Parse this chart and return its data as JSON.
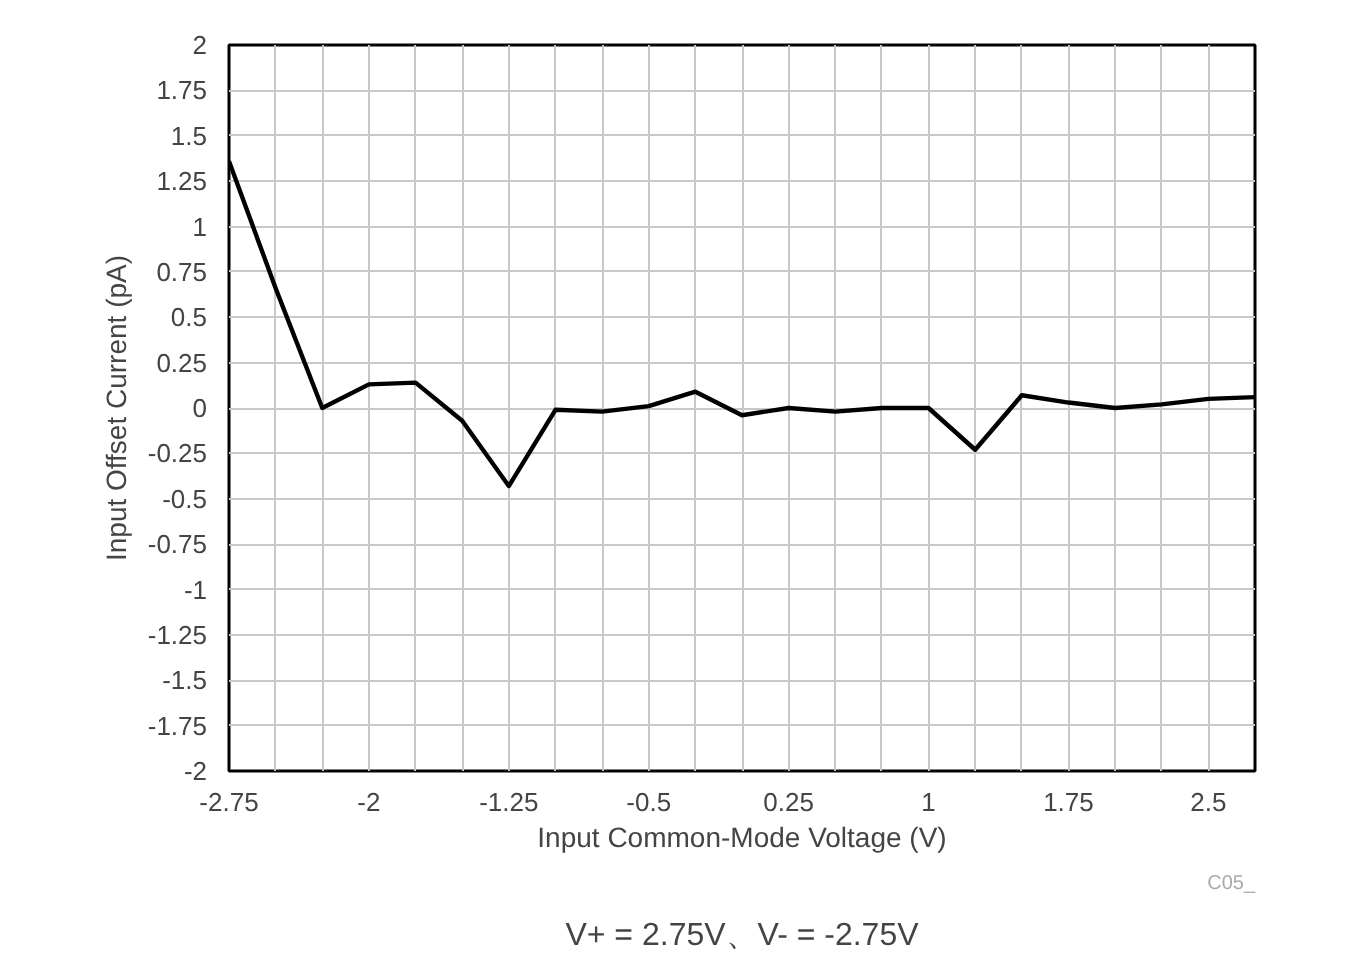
{
  "chart_data": {
    "type": "line",
    "xlabel": "Input Common-Mode Voltage (V)",
    "ylabel": "Input Offset Current (pA)",
    "x": [
      -2.75,
      -2.5,
      -2.25,
      -2,
      -1.75,
      -1.5,
      -1.25,
      -1,
      -0.75,
      -0.5,
      -0.25,
      0,
      0.25,
      0.5,
      0.75,
      1,
      1.25,
      1.5,
      1.75,
      2,
      2.25,
      2.5,
      2.75
    ],
    "series": [
      {
        "color": "#000000",
        "values": [
          1.36,
          0.66,
          0.0,
          0.13,
          0.14,
          -0.07,
          -0.43,
          -0.01,
          -0.02,
          0.01,
          0.09,
          -0.04,
          0.0,
          -0.02,
          0.0,
          0.0,
          -0.23,
          0.07,
          0.03,
          0.0,
          0.02,
          0.05,
          0.06
        ]
      }
    ],
    "xlim": [
      -2.75,
      2.75
    ],
    "ylim": [
      -2,
      2
    ],
    "xticks": [
      -2.75,
      {
        "value": -2.5,
        "label": null
      },
      {
        "value": -2.25,
        "label": null
      },
      -2,
      {
        "value": -1.75,
        "label": null
      },
      {
        "value": -1.5,
        "label": null
      },
      -1.25,
      {
        "value": -1,
        "label": null
      },
      {
        "value": -0.75,
        "label": null
      },
      -0.5,
      {
        "value": -0.25,
        "label": null
      },
      {
        "value": 0,
        "label": null
      },
      0.25,
      {
        "value": 0.5,
        "label": null
      },
      {
        "value": 0.75,
        "label": null
      },
      1,
      {
        "value": 1.25,
        "label": null
      },
      {
        "value": 1.5,
        "label": null
      },
      1.75,
      {
        "value": 2,
        "label": null
      },
      {
        "value": 2.25,
        "label": null
      },
      2.5,
      {
        "value": 2.75,
        "label": null
      }
    ],
    "yticks": [
      -2,
      -1.75,
      -1.5,
      -1.25,
      -1,
      -0.75,
      -0.5,
      -0.25,
      0,
      0.25,
      0.5,
      0.75,
      1,
      1.25,
      1.5,
      1.75,
      2
    ],
    "grid": true,
    "line_style": "solid",
    "marker": "none",
    "annotations": [
      "C05_",
      "V+ = 2.75V、V- = -2.75V"
    ]
  }
}
